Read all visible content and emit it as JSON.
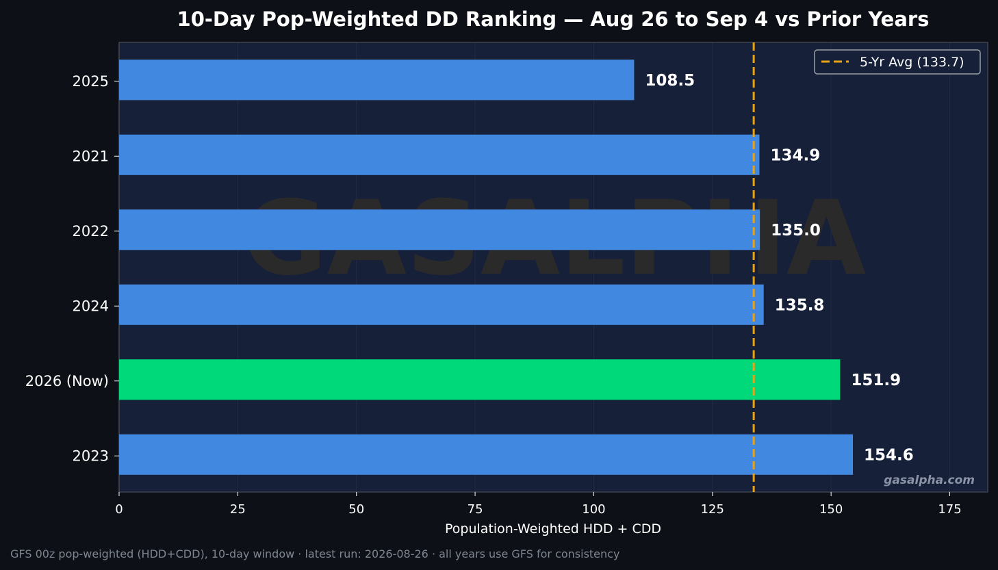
{
  "chart_data": {
    "type": "bar",
    "orientation": "horizontal",
    "title": "10-Day Pop-Weighted DD Ranking — Aug 26 to Sep 4 vs Prior Years",
    "xlabel": "Population-Weighted HDD + CDD",
    "ylabel": "",
    "xlim": [
      0,
      183
    ],
    "xticks": [
      0,
      25,
      50,
      75,
      100,
      125,
      150,
      175
    ],
    "categories": [
      "2025",
      "2021",
      "2022",
      "2024",
      "2026 (Now)",
      "2023"
    ],
    "values": [
      108.5,
      134.9,
      135.0,
      135.8,
      151.9,
      154.6
    ],
    "value_labels": [
      "108.5",
      "134.9",
      "135.0",
      "135.8",
      "151.9",
      "154.6"
    ],
    "highlight": "2026 (Now)",
    "colors": {
      "bar": "#4189e0",
      "highlight": "#00d97a",
      "avg_line": "#e8a317",
      "plot_bg": "#162039",
      "page_bg": "#0d1117"
    },
    "reference_line": {
      "value": 133.7,
      "label": "5-Yr Avg (133.7)",
      "style": "dashed"
    },
    "legend_position": "top-right",
    "grid": true,
    "watermark": "GASALPHA",
    "site_label": "gasalpha.com",
    "footnote": "GFS 00z pop-weighted (HDD+CDD), 10-day window  ·  latest run: 2026-08-26  ·  all years use GFS for consistency"
  }
}
